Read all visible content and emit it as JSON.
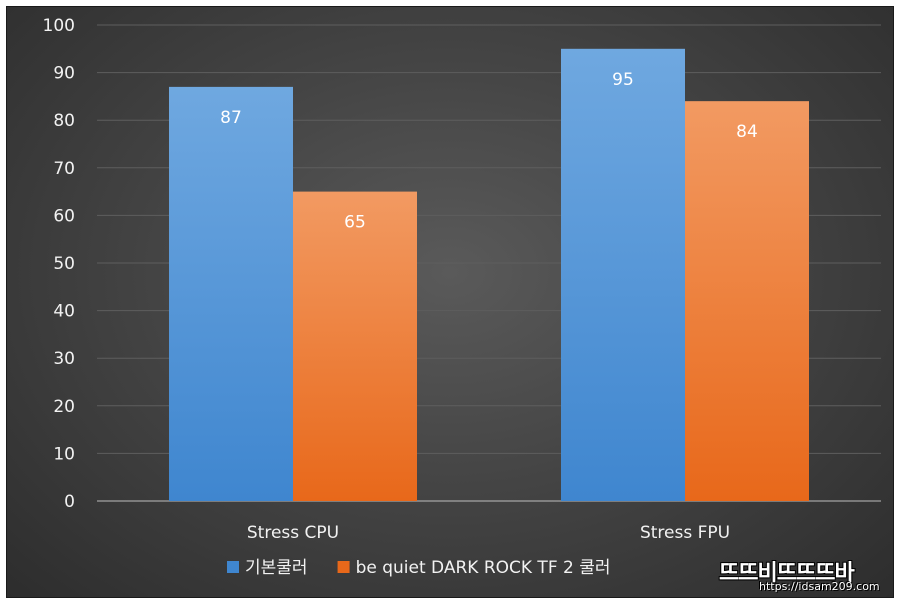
{
  "chart_data": {
    "type": "bar",
    "categories": [
      "Stress CPU",
      "Stress FPU"
    ],
    "series": [
      {
        "name": "기본쿨러",
        "values": [
          87,
          95
        ],
        "color_top": "#6fa8e0",
        "color_bottom": "#3f86cf"
      },
      {
        "name": "be quiet DARK ROCK TF 2 쿨러",
        "values": [
          65,
          84
        ],
        "color_top": "#f29a62",
        "color_bottom": "#e8681a"
      }
    ],
    "yticks": [
      0,
      10,
      20,
      30,
      40,
      50,
      60,
      70,
      80,
      90,
      100
    ],
    "ylim": [
      0,
      100
    ],
    "grid": true,
    "legend": "bottom",
    "data_labels": true
  },
  "watermark": {
    "title": "뜨뜨비뜨뜨뜨바",
    "url": "https://idsam209.com"
  }
}
